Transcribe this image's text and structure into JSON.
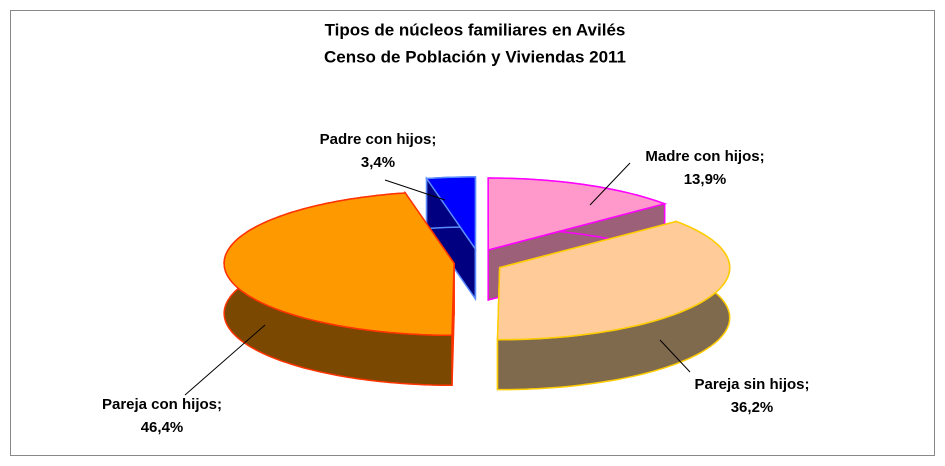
{
  "chart_data": {
    "type": "pie3d",
    "title": "Tipos de núcleos familiares en Avilés",
    "subtitle": "Censo de Población y Viviendas  2011",
    "categories": [
      "Madre con hijos;",
      "Pareja sin hijos;",
      "Pareja con hijos;",
      "Padre con hijos;"
    ],
    "values": [
      13.9,
      36.2,
      46.4,
      3.4
    ],
    "value_labels": [
      "13,9%",
      "36,2%",
      "46,4%",
      "3,4%"
    ],
    "colors": [
      "#ff99cc",
      "#ffcc99",
      "#ff9900",
      "#0000ff"
    ],
    "side_colors": [
      "#9c6078",
      "#806a4e",
      "#7a4800",
      "#000080"
    ],
    "edge_colors": [
      "#ff00ff",
      "#ffcc00",
      "#ff3300",
      "#5b8cff"
    ]
  }
}
